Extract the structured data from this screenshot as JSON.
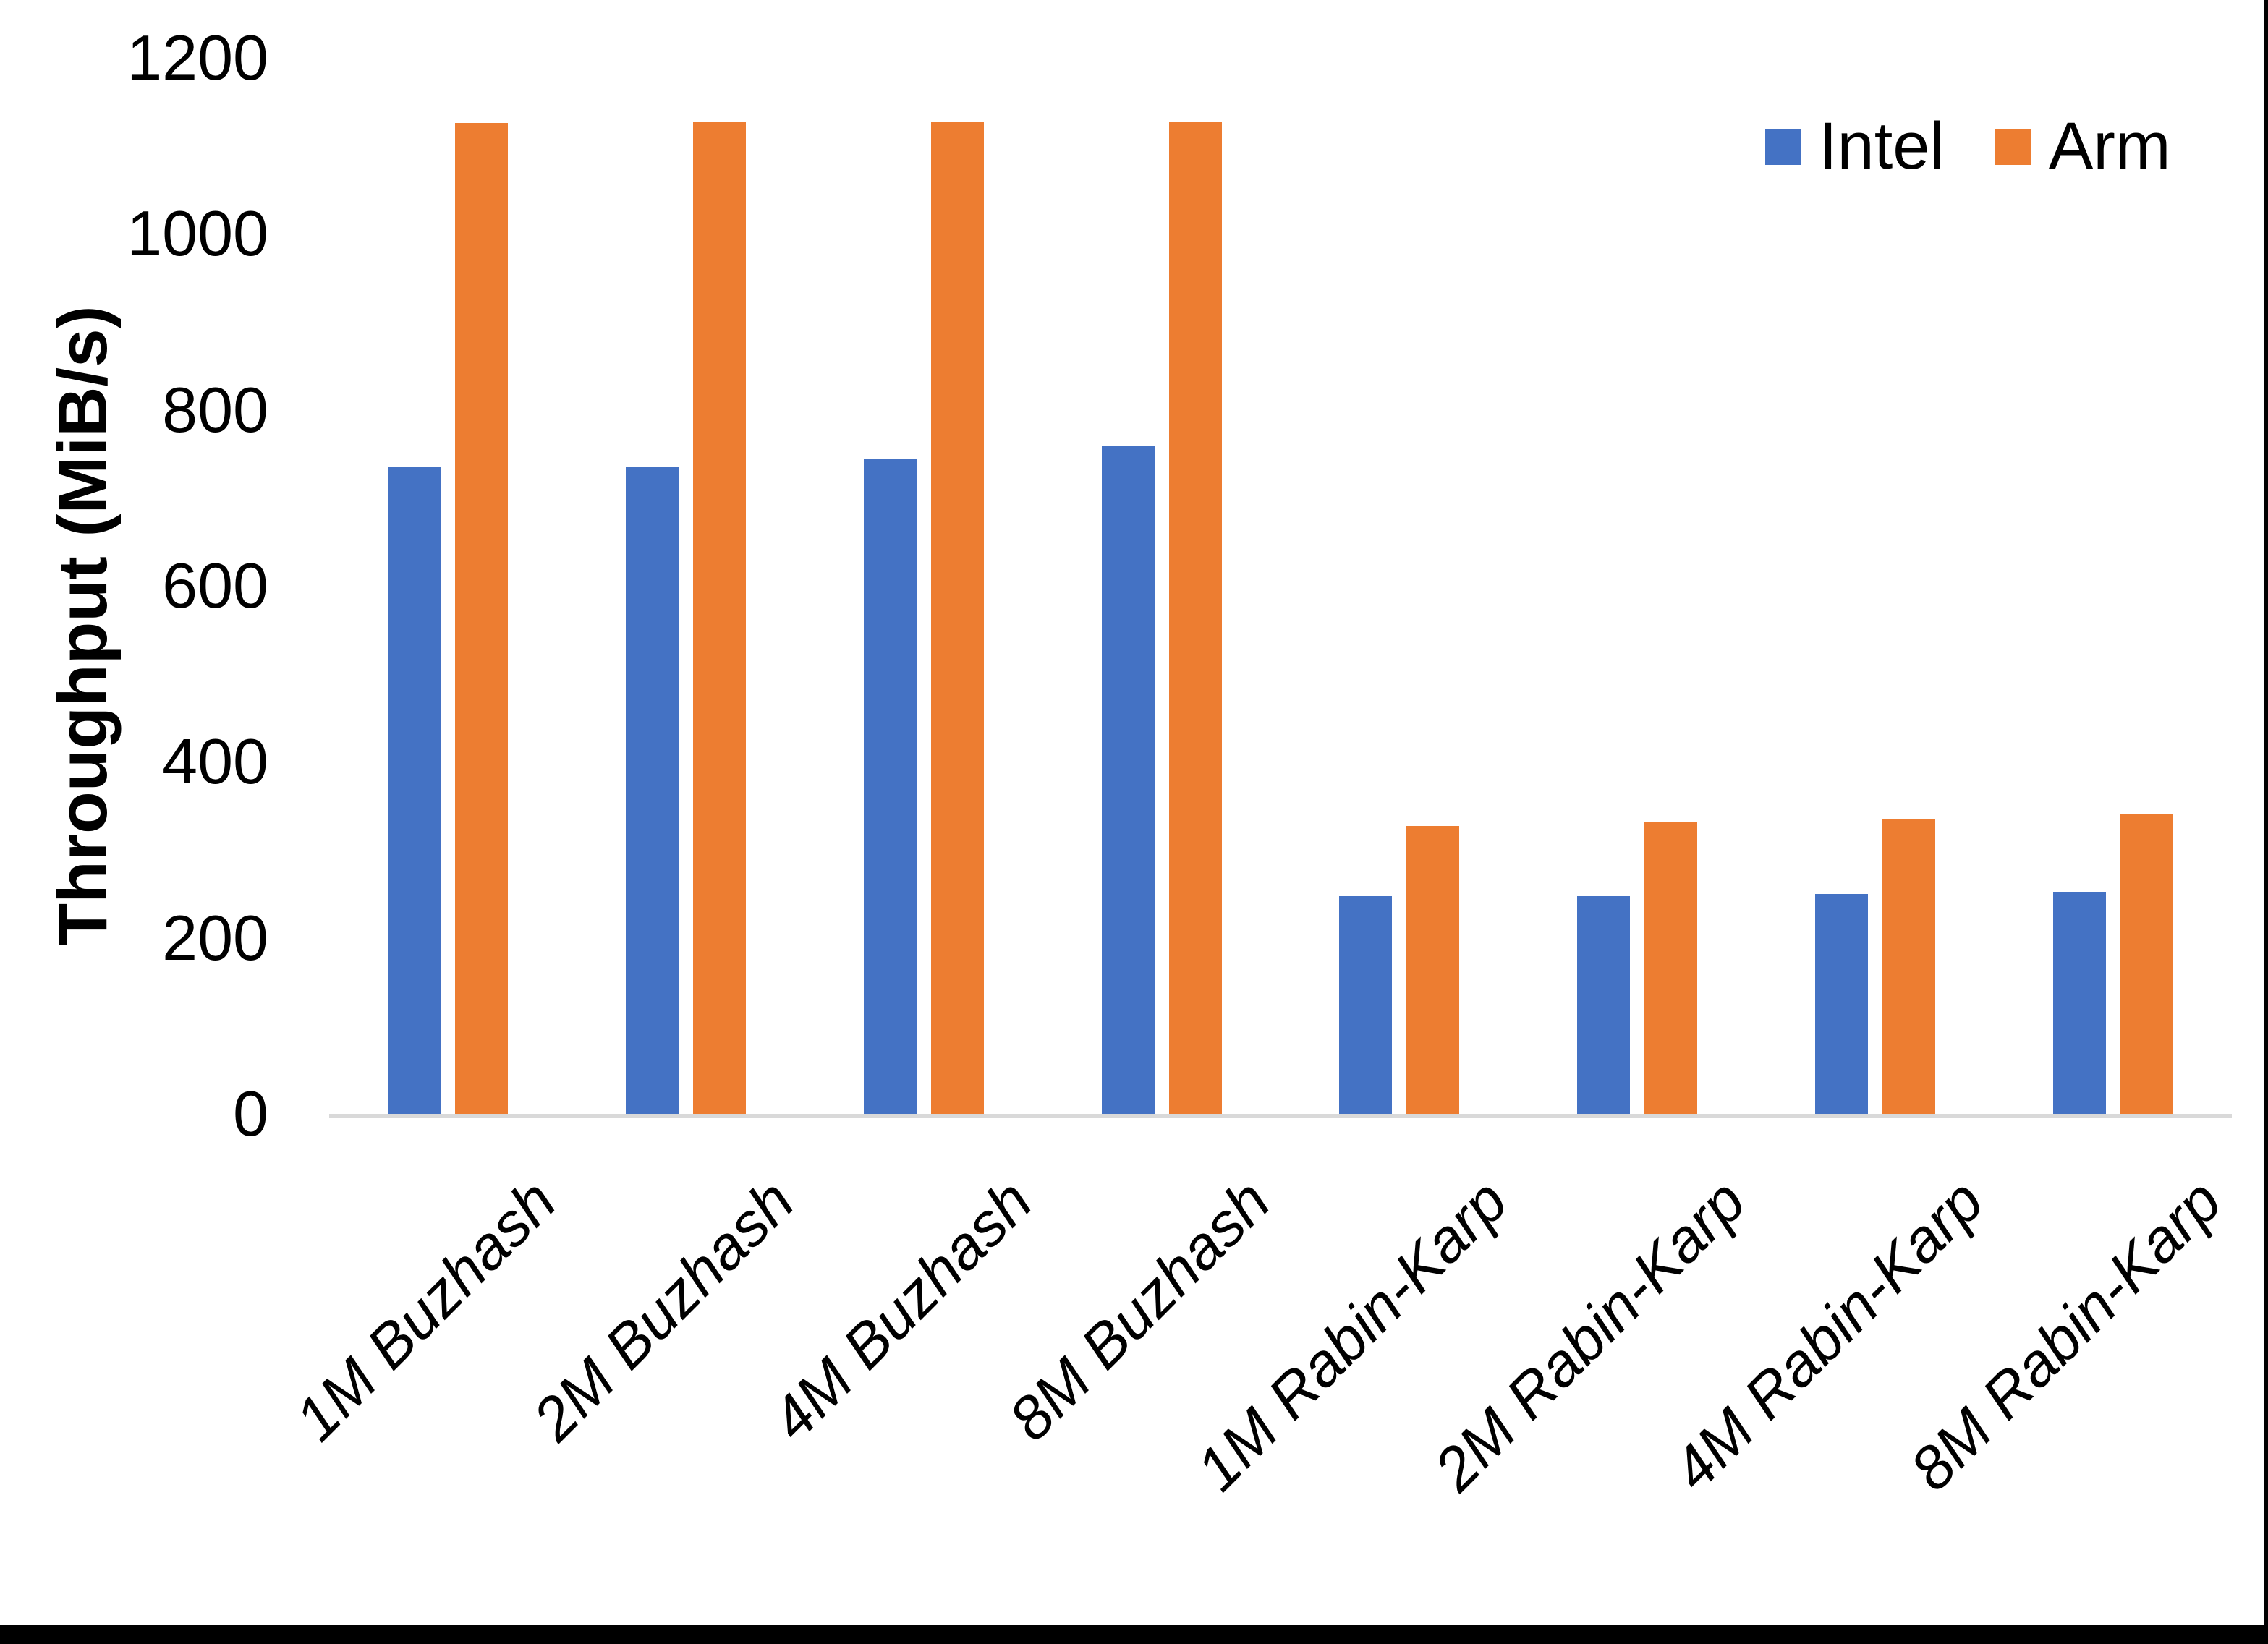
{
  "chart_data": {
    "type": "bar",
    "title": "",
    "xlabel": "",
    "ylabel": "Throughput (MiB/s)",
    "ylim": [
      0,
      1200
    ],
    "yticks": [
      0,
      200,
      400,
      600,
      800,
      1000,
      1200
    ],
    "grid": false,
    "legend_position": "top-right",
    "categories": [
      "1M Buzhash",
      "2M Buzhash",
      "4M Buzhash",
      "8M Buzhash",
      "1M Rabin-Karp",
      "2M Rabin-Karp",
      "4M Rabin-Karp",
      "8M Rabin-Karp"
    ],
    "series": [
      {
        "name": "Intel",
        "color": "#4472C4",
        "values": [
          736,
          735,
          744,
          759,
          247,
          247,
          250,
          252
        ]
      },
      {
        "name": "Arm",
        "color": "#ED7D31",
        "values": [
          1126,
          1127,
          1127,
          1127,
          327,
          331,
          335,
          340
        ]
      }
    ]
  },
  "axes": {
    "y_title": "Throughput (MiB/s)",
    "y_tick_labels": [
      "0",
      "200",
      "400",
      "600",
      "800",
      "1000",
      "1200"
    ]
  },
  "legend": {
    "items": [
      {
        "label": "Intel",
        "color": "#4472C4"
      },
      {
        "label": "Arm",
        "color": "#ED7D31"
      }
    ]
  },
  "colors": {
    "background": "#FFFFFF",
    "axis_line": "#D9D9D9",
    "text": "#000000",
    "intel": "#4472C4",
    "arm": "#ED7D31",
    "window_border": "#000000"
  }
}
